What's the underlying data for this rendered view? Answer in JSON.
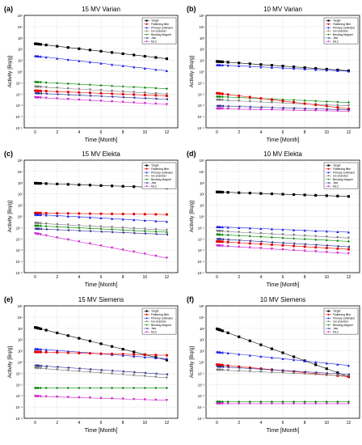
{
  "figure": {
    "panels_order": [
      "a",
      "b",
      "c",
      "d",
      "e",
      "f"
    ]
  },
  "legend_labels": [
    "Target",
    "Flattening filter",
    "Primary collimator",
    "Ion chamber",
    "Bending Magnet",
    "Jaw",
    "MLC"
  ],
  "series_colors": {
    "Target": "#000000",
    "Flattening filter": "#e60000",
    "Primary collimator": "#1f1fe6",
    "Ion chamber": "#7a7a7a",
    "Bending Magnet": "#0a8a0a",
    "Jaw": "#303090",
    "MLC": "#cc22cc"
  },
  "series_markers": {
    "Target": "square",
    "Flattening filter": "circle",
    "Primary collimator": "triangle-up",
    "Ion chamber": "triangle-down",
    "Bending Magnet": "diamond",
    "Jaw": "triangle-left",
    "MLC": "triangle-down"
  },
  "chart_data": [
    {
      "panel_label": "(a)",
      "title": "15 MV Varian",
      "type": "line",
      "xlabel": "Time [Month]",
      "ylabel": "Activity [Bq/g]",
      "xlim": [
        -1,
        13
      ],
      "ylim_exponent": [
        -5,
        5
      ],
      "y_scale": "log",
      "x_ticks": [
        "0",
        "2",
        "4",
        "6",
        "8",
        "10",
        "12"
      ],
      "y_ticks": [
        "10⁻⁵",
        "10⁻⁴",
        "10⁻³",
        "10⁻²",
        "10⁻¹",
        "10⁰",
        "10¹",
        "10²",
        "10³",
        "10⁴",
        "10⁵"
      ],
      "grid": true,
      "legend_position": "top-right",
      "x": [
        0,
        0.1,
        0.2,
        0.3,
        0.5,
        1,
        2,
        3,
        4,
        5,
        6,
        7,
        8,
        9,
        10,
        11,
        12
      ],
      "series": [
        {
          "name": "Target",
          "start": 300,
          "end": 14
        },
        {
          "name": "Primary collimator",
          "start": 25,
          "end": 1.2
        },
        {
          "name": "Bending Magnet",
          "start": 0.12,
          "end": 0.03
        },
        {
          "name": "Ion chamber",
          "start": 0.045,
          "end": 0.01
        },
        {
          "name": "Flattening filter",
          "start": 0.02,
          "end": 0.007
        },
        {
          "name": "Jaw",
          "start": 0.012,
          "end": 0.0035
        },
        {
          "name": "MLC",
          "start": 0.005,
          "end": 0.0012
        }
      ]
    },
    {
      "panel_label": "(b)",
      "title": "10 MV Varian",
      "type": "line",
      "xlabel": "Time [Month]",
      "ylabel": "Activity [Bq/g]",
      "xlim": [
        -1,
        13
      ],
      "ylim_exponent": [
        -5,
        5
      ],
      "y_scale": "log",
      "x_ticks": [
        "0",
        "2",
        "4",
        "6",
        "8",
        "10",
        "12"
      ],
      "y_ticks": [
        "10⁻⁵",
        "10⁻⁴",
        "10⁻³",
        "10⁻²",
        "10⁻¹",
        "10⁰",
        "10¹",
        "10²",
        "10³",
        "10⁴",
        "10⁵"
      ],
      "grid": true,
      "legend_position": "top-right",
      "x": [
        0,
        0.1,
        0.2,
        0.3,
        0.5,
        1,
        2,
        3,
        4,
        5,
        6,
        7,
        8,
        9,
        10,
        11,
        12
      ],
      "series": [
        {
          "name": "Target",
          "start": 8,
          "end": 1.2
        },
        {
          "name": "Primary collimator",
          "start": 4,
          "end": 1.1
        },
        {
          "name": "Bending Magnet",
          "start": 0.006,
          "end": 0.0018
        },
        {
          "name": "Ion chamber",
          "start": 0.003,
          "end": 0.0009
        },
        {
          "name": "Flattening filter",
          "start": 0.012,
          "end": 0.0005
        },
        {
          "name": "Jaw",
          "start": 0.0009,
          "end": 0.0004
        },
        {
          "name": "MLC",
          "start": 0.0005,
          "end": 0.0003
        }
      ]
    },
    {
      "panel_label": "(c)",
      "title": "15 MV Elekta",
      "type": "line",
      "xlabel": "Time [Month]",
      "ylabel": "Activity [Bq/g]",
      "xlim": [
        -1,
        13
      ],
      "ylim_exponent": [
        -5,
        5
      ],
      "y_scale": "log",
      "x_ticks": [
        "0",
        "2",
        "4",
        "6",
        "8",
        "10",
        "12"
      ],
      "y_ticks": [
        "10⁻⁵",
        "10⁻⁴",
        "10⁻³",
        "10⁻²",
        "10⁻¹",
        "10⁰",
        "10¹",
        "10²",
        "10³",
        "10⁴",
        "10⁵"
      ],
      "grid": true,
      "legend_position": "top-right",
      "x": [
        0,
        0.1,
        0.2,
        0.3,
        0.5,
        1,
        2,
        3,
        4,
        5,
        6,
        7,
        8,
        9,
        10,
        11,
        12
      ],
      "series": [
        {
          "name": "Target",
          "start": 900,
          "end": 350
        },
        {
          "name": "Flattening filter",
          "start": 2,
          "end": 1.5
        },
        {
          "name": "Primary collimator",
          "start": 1.5,
          "end": 0.35
        },
        {
          "name": "Ion chamber",
          "start": 0.25,
          "end": 0.06
        },
        {
          "name": "Bending Magnet",
          "start": 0.15,
          "end": 0.04
        },
        {
          "name": "Jaw",
          "start": 0.08,
          "end": 0.025
        },
        {
          "name": "MLC",
          "start": 0.03,
          "end": 0.0002
        }
      ]
    },
    {
      "panel_label": "(d)",
      "title": "10 MV Elekta",
      "type": "line",
      "xlabel": "Time [Month]",
      "ylabel": "Activity [Bq/g]",
      "xlim": [
        -1,
        13
      ],
      "ylim_exponent": [
        -5,
        5
      ],
      "y_scale": "log",
      "x_ticks": [
        "0",
        "2",
        "4",
        "6",
        "8",
        "10",
        "12"
      ],
      "y_ticks": [
        "10⁻⁵",
        "10⁻⁴",
        "10⁻³",
        "10⁻²",
        "10⁻¹",
        "10⁰",
        "10¹",
        "10²",
        "10³",
        "10⁴",
        "10⁵"
      ],
      "grid": true,
      "legend_position": "top-right",
      "x": [
        0,
        0.1,
        0.2,
        0.3,
        0.5,
        1,
        2,
        3,
        4,
        5,
        6,
        7,
        8,
        9,
        10,
        11,
        12
      ],
      "series": [
        {
          "name": "Target",
          "start": 150,
          "end": 60
        },
        {
          "name": "Primary collimator",
          "start": 0.12,
          "end": 0.04
        },
        {
          "name": "Ion chamber",
          "start": 0.05,
          "end": 0.012
        },
        {
          "name": "Bending Magnet",
          "start": 0.025,
          "end": 0.006
        },
        {
          "name": "Jaw",
          "start": 0.01,
          "end": 0.002
        },
        {
          "name": "Flattening filter",
          "start": 0.006,
          "end": 0.0012
        },
        {
          "name": "MLC",
          "start": 0.0025,
          "end": 0.0005
        }
      ]
    },
    {
      "panel_label": "(e)",
      "title": "15 MV Siemens",
      "type": "line",
      "xlabel": "Time [Month]",
      "ylabel": "Activity [Bq/g]",
      "xlim": [
        -1,
        13
      ],
      "ylim_exponent": [
        -5,
        5
      ],
      "y_scale": "log",
      "x_ticks": [
        "0",
        "2",
        "4",
        "6",
        "8",
        "10",
        "12"
      ],
      "y_ticks": [
        "10⁻⁵",
        "10⁻⁴",
        "10⁻³",
        "10⁻²",
        "10⁻¹",
        "10⁰",
        "10¹",
        "10²",
        "10³",
        "10⁴",
        "10⁵"
      ],
      "grid": true,
      "legend_position": "top-right",
      "x": [
        0,
        0.1,
        0.2,
        0.3,
        0.5,
        1,
        2,
        3,
        4,
        5,
        6,
        7,
        8,
        9,
        10,
        11,
        12
      ],
      "series": [
        {
          "name": "Target",
          "start": 1200,
          "end": 1.5
        },
        {
          "name": "Primary collimator",
          "start": 15,
          "end": 2
        },
        {
          "name": "Flattening filter",
          "start": 8,
          "end": 4
        },
        {
          "name": "Jaw",
          "start": 0.5,
          "end": 0.08
        },
        {
          "name": "Ion chamber",
          "start": 0.3,
          "end": 0.04
        },
        {
          "name": "Bending Magnet",
          "start": 0.005,
          "end": 0.005
        },
        {
          "name": "MLC",
          "start": 0.0009,
          "end": 0.0004
        }
      ]
    },
    {
      "panel_label": "(f)",
      "title": "10 MV Siemens",
      "type": "line",
      "xlabel": "Time [Month]",
      "ylabel": "Activity [Bq/g]",
      "xlim": [
        -1,
        13
      ],
      "ylim_exponent": [
        -5,
        5
      ],
      "y_scale": "log",
      "x_ticks": [
        "0",
        "2",
        "4",
        "6",
        "8",
        "10",
        "12"
      ],
      "y_ticks": [
        "10⁻⁵",
        "10⁻⁴",
        "10⁻³",
        "10⁻²",
        "10⁻¹",
        "10⁰",
        "10¹",
        "10²",
        "10³",
        "10⁴",
        "10⁵"
      ],
      "grid": true,
      "legend_position": "top-right",
      "x": [
        0,
        0.1,
        0.2,
        0.3,
        0.5,
        1,
        2,
        3,
        4,
        5,
        6,
        7,
        8,
        9,
        10,
        11,
        12
      ],
      "series": [
        {
          "name": "Target",
          "start": 900,
          "end": 0.05
        },
        {
          "name": "Primary collimator",
          "start": 8,
          "end": 0.5
        },
        {
          "name": "Flattening filter",
          "start": 0.6,
          "end": 0.05
        },
        {
          "name": "Jaw",
          "start": 0.4,
          "end": 0.08
        },
        {
          "name": "Ion chamber",
          "start": 0.2,
          "end": 0.06
        },
        {
          "name": "Bending Magnet",
          "start": 0.0003,
          "end": 0.0003
        },
        {
          "name": "MLC",
          "start": 0.0002,
          "end": 0.0002
        }
      ]
    }
  ]
}
